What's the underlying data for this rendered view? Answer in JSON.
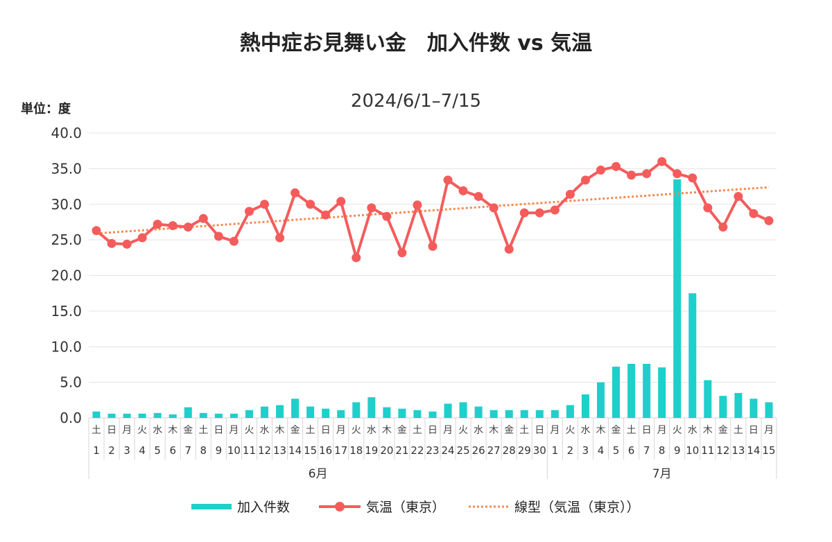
{
  "chart_data": {
    "type": "bar",
    "title": "熱中症お見舞い金　加入件数 vs 気温",
    "subtitle": "2024/6/1–7/15",
    "ylabel": "単位：度",
    "ylim": [
      0,
      40
    ],
    "yticks": [
      "0.0",
      "5.0",
      "10.0",
      "15.0",
      "20.0",
      "25.0",
      "30.0",
      "35.0",
      "40.0"
    ],
    "grid": true,
    "legend_position": "bottom",
    "dates": [
      "1",
      "2",
      "3",
      "4",
      "5",
      "6",
      "7",
      "8",
      "9",
      "10",
      "11",
      "12",
      "13",
      "14",
      "15",
      "16",
      "17",
      "18",
      "19",
      "20",
      "21",
      "22",
      "23",
      "24",
      "25",
      "26",
      "27",
      "28",
      "29",
      "30",
      "1",
      "2",
      "3",
      "4",
      "5",
      "6",
      "7",
      "8",
      "9",
      "10",
      "11",
      "12",
      "13",
      "14",
      "15"
    ],
    "weekdays": [
      "土",
      "日",
      "月",
      "火",
      "水",
      "木",
      "金",
      "土",
      "日",
      "月",
      "火",
      "水",
      "木",
      "金",
      "土",
      "日",
      "月",
      "火",
      "水",
      "木",
      "金",
      "土",
      "日",
      "月",
      "火",
      "水",
      "木",
      "金",
      "土",
      "日",
      "月",
      "火",
      "水",
      "木",
      "金",
      "土",
      "日",
      "月",
      "火",
      "水",
      "木",
      "金",
      "土",
      "日",
      "月"
    ],
    "months": [
      {
        "label": "6月",
        "start": 0,
        "count": 30
      },
      {
        "label": "7月",
        "start": 30,
        "count": 15
      }
    ],
    "series": [
      {
        "name": "加入件数",
        "kind": "bar",
        "color": "#1fcfcb",
        "values": [
          0.9,
          0.6,
          0.6,
          0.6,
          0.7,
          0.5,
          1.5,
          0.7,
          0.6,
          0.6,
          1.1,
          1.6,
          1.8,
          2.7,
          1.6,
          1.3,
          1.1,
          2.2,
          2.9,
          1.5,
          1.3,
          1.1,
          0.9,
          2.0,
          2.2,
          1.6,
          1.1,
          1.1,
          1.1,
          1.1,
          1.1,
          1.8,
          3.3,
          5.0,
          7.2,
          7.6,
          7.6,
          7.1,
          33.5,
          17.5,
          5.3,
          3.1,
          3.5,
          2.7,
          2.2
        ]
      },
      {
        "name": "気温（東京）",
        "kind": "line",
        "color": "#f45c5c",
        "values": [
          26.3,
          24.5,
          24.4,
          25.3,
          27.2,
          27.0,
          26.8,
          28.0,
          25.5,
          24.8,
          29.0,
          30.0,
          25.3,
          31.6,
          30.0,
          28.5,
          30.4,
          22.5,
          29.5,
          28.3,
          23.2,
          29.9,
          24.1,
          33.4,
          31.9,
          31.1,
          29.5,
          23.7,
          28.8,
          28.8,
          29.2,
          31.4,
          33.4,
          34.8,
          35.3,
          34.1,
          34.3,
          36.0,
          34.3,
          33.7,
          29.5,
          26.8,
          31.1,
          28.7,
          27.7
        ]
      },
      {
        "name": "線型（気温（東京））",
        "kind": "trendline",
        "color": "#f28a52",
        "values": [
          25.9,
          26.05,
          26.2,
          26.34,
          26.49,
          26.64,
          26.79,
          26.93,
          27.08,
          27.23,
          27.38,
          27.52,
          27.67,
          27.82,
          27.97,
          28.11,
          28.26,
          28.41,
          28.56,
          28.7,
          28.85,
          29.0,
          29.15,
          29.29,
          29.44,
          29.59,
          29.74,
          29.88,
          30.03,
          30.18,
          30.33,
          30.47,
          30.62,
          30.77,
          30.92,
          31.06,
          31.21,
          31.36,
          31.51,
          31.65,
          31.8,
          31.95,
          32.1,
          32.24,
          32.39
        ]
      }
    ]
  }
}
